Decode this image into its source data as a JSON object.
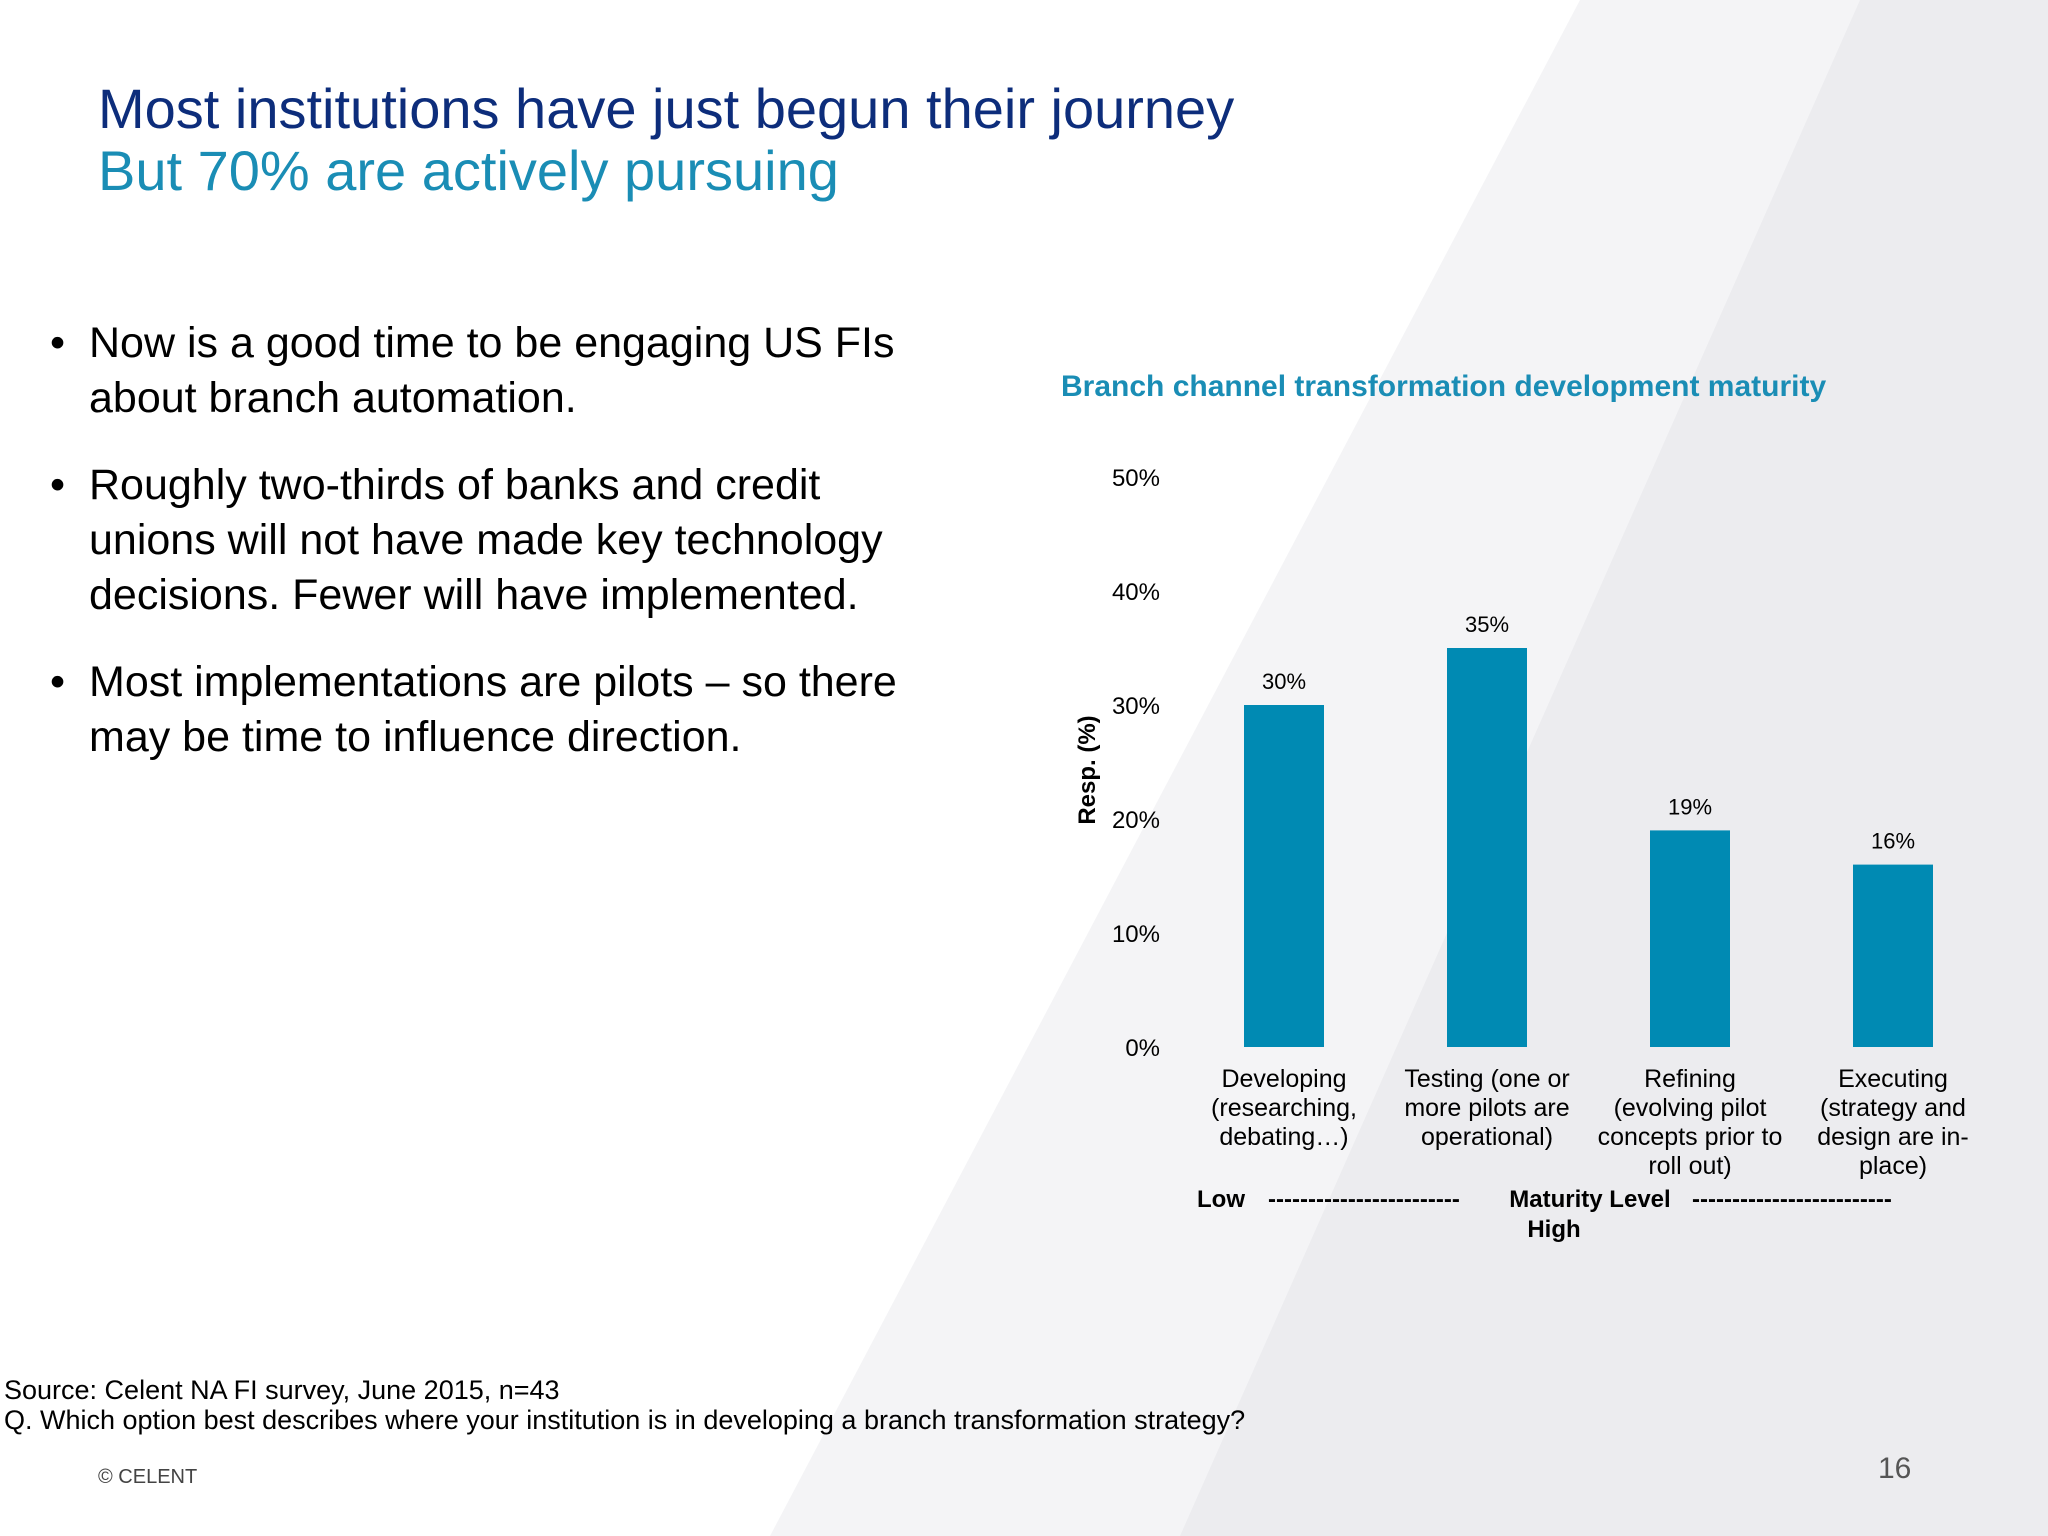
{
  "slide": {
    "title": "Most institutions have just begun their journey",
    "subtitle": "But 70% are actively pursuing",
    "bullets": [
      {
        "line1": "Now is a good time to be engaging US FIs",
        "line2": "about branch automation."
      },
      {
        "line1": "Roughly two-thirds of banks and credit",
        "line2": "unions will not have made key technology",
        "line3": "decisions. Fewer will have implemented."
      },
      {
        "line1": "Most implementations are pilots – so there",
        "line2": "may be time to influence direction."
      }
    ],
    "bullet_symbol": "•",
    "source_line1": "Source: Celent NA FI survey, June 2015, n=43",
    "source_line2": "Q. Which option best describes where your institution is in developing a branch transformation strategy?",
    "copyright": "© CELENT",
    "page_number": "16"
  },
  "colors": {
    "title": "#0d2d7b",
    "accent": "#1a8db5",
    "bar": "#008ab3",
    "background_band": "#ececef"
  },
  "chart_data": {
    "type": "bar",
    "title": "Branch channel transformation development maturity",
    "ylabel": "Resp. (%)",
    "xlabel_parts": {
      "low": "Low",
      "dashes_left": "------------------------",
      "center": "Maturity Level",
      "dashes_right": "-------------------------",
      "high": "High"
    },
    "categories": [
      [
        "Developing",
        "(researching,",
        "debating…)"
      ],
      [
        "Testing (one or",
        "more pilots are",
        "operational)"
      ],
      [
        "Refining",
        "(evolving pilot",
        "concepts prior to",
        "roll out)"
      ],
      [
        "Executing",
        "(strategy and",
        "design are in-",
        "place)"
      ]
    ],
    "values": [
      30,
      35,
      19,
      16
    ],
    "data_labels": [
      "30%",
      "35%",
      "19%",
      "16%"
    ],
    "ylim": [
      0,
      50
    ],
    "yticks": [
      0,
      10,
      20,
      30,
      40,
      50
    ],
    "ytick_labels": [
      "0%",
      "10%",
      "20%",
      "30%",
      "40%",
      "50%"
    ],
    "grid": false,
    "legend": "none"
  }
}
